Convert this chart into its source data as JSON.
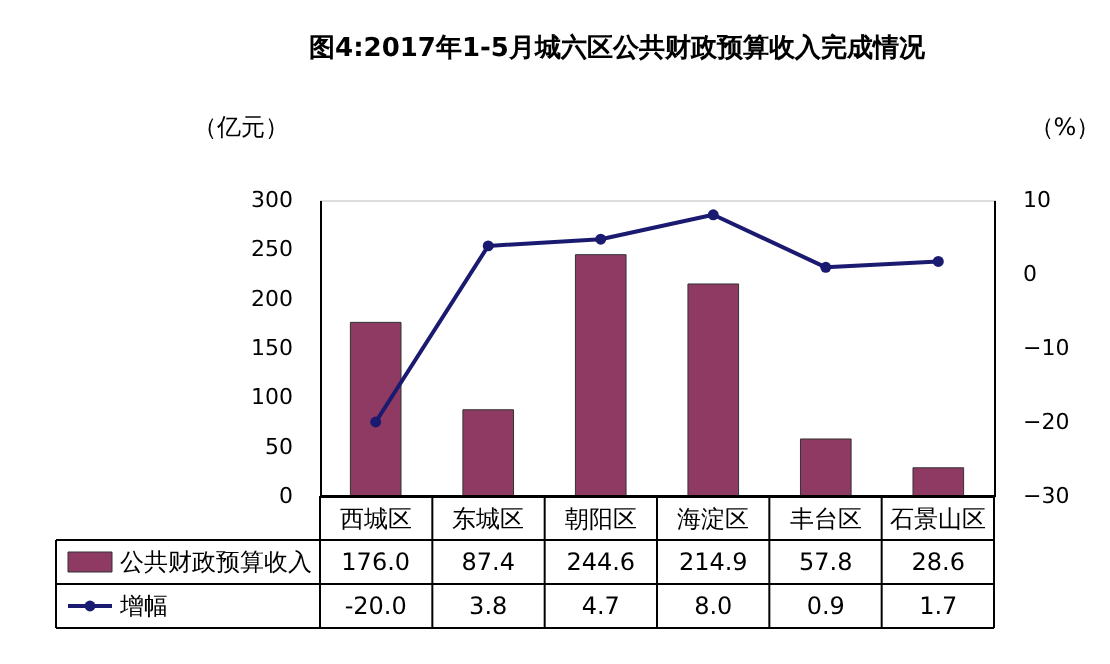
{
  "chart_data": {
    "type": "bar",
    "title": "图4:2017年1-5月城六区公共财政预算收入完成情况",
    "ylabel": "（亿元）",
    "y2label": "（%）",
    "categories": [
      "西城区",
      "东城区",
      "朝阳区",
      "海淀区",
      "丰台区",
      "石景山区"
    ],
    "series": [
      {
        "name": "公共财政预算收入",
        "color": "#8e3a63",
        "values": [
          176.0,
          87.4,
          244.6,
          214.9,
          57.8,
          28.6
        ],
        "value_labels": [
          "176.0",
          "87.4",
          "244.6",
          "214.9",
          "57.8",
          "28.6"
        ]
      },
      {
        "name": "增幅",
        "type": "line",
        "axis": "y2",
        "color": "#1a1a70",
        "values": [
          -20.0,
          3.8,
          4.7,
          8.0,
          0.9,
          1.7
        ],
        "value_labels": [
          "-20.0",
          "3.8",
          "4.7",
          "8.0",
          "0.9",
          "1.7"
        ]
      }
    ],
    "ylim": [
      0,
      300
    ],
    "yticks": [
      0,
      50,
      100,
      150,
      200,
      250,
      300
    ],
    "y2lim": [
      -30,
      10
    ],
    "y2ticks": [
      -30,
      -20,
      -10,
      0,
      10
    ],
    "marker": "circle",
    "legend": "bottom",
    "grid": false
  }
}
